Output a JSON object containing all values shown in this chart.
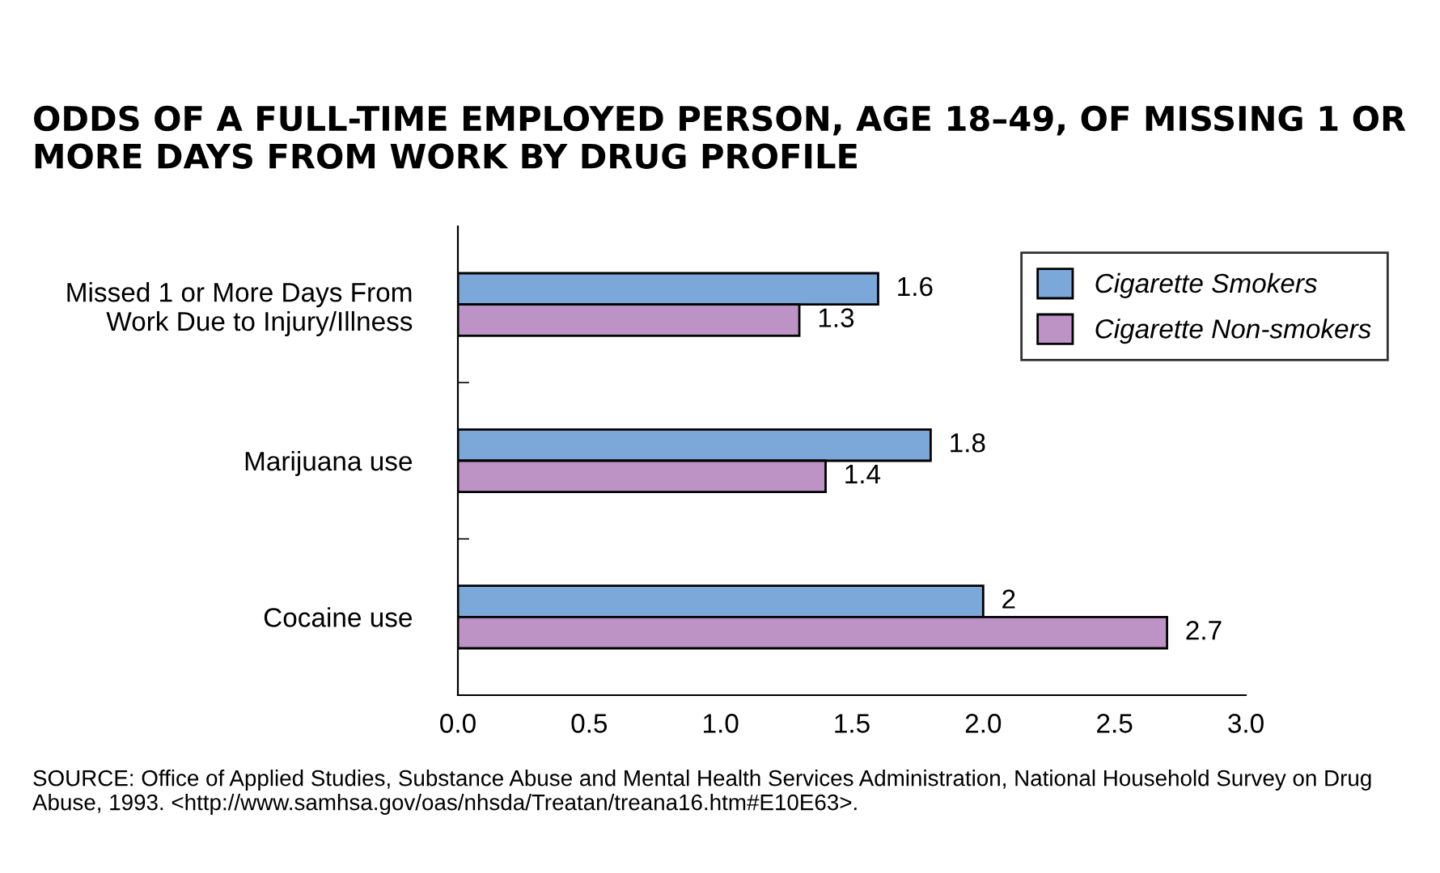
{
  "chart_data": {
    "type": "bar",
    "orientation": "horizontal",
    "title": "ODDS OF A FULL-TIME EMPLOYED PERSON, AGE 18–49, OF MISSING 1 OR MORE DAYS FROM WORK BY DRUG PROFILE",
    "categories": [
      "Missed 1 or More Days From\nWork Due to Injury/Illness",
      "Marijuana use",
      "Cocaine use"
    ],
    "series": [
      {
        "name": "Cigarette Smokers",
        "color": "#7ba7d9",
        "values": [
          1.6,
          1.8,
          2
        ]
      },
      {
        "name": "Cigarette Non-smokers",
        "color": "#bd93c6",
        "values": [
          1.3,
          1.4,
          2.7
        ]
      }
    ],
    "xlim": [
      0,
      3.0
    ],
    "xticks": [
      {
        "value": 0,
        "label": "0.0"
      },
      {
        "value": 0.5,
        "label": "0.5"
      },
      {
        "value": 1,
        "label": "1.0"
      },
      {
        "value": 1.5,
        "label": "1.5"
      },
      {
        "value": 2,
        "label": "2.0"
      },
      {
        "value": 2.5,
        "label": "2.5"
      },
      {
        "value": 3,
        "label": "3.0"
      }
    ],
    "data_labels": true,
    "legend": "top right",
    "grid": false,
    "annotations": [
      "SOURCE: Office of Applied Studies, Substance Abuse and Mental Health Services Administration, National Household Survey on Drug Abuse, 1993. <http://www.samhsa.gov/oas/nhsda/Treatan/treana16.htm#E10E63>."
    ]
  }
}
